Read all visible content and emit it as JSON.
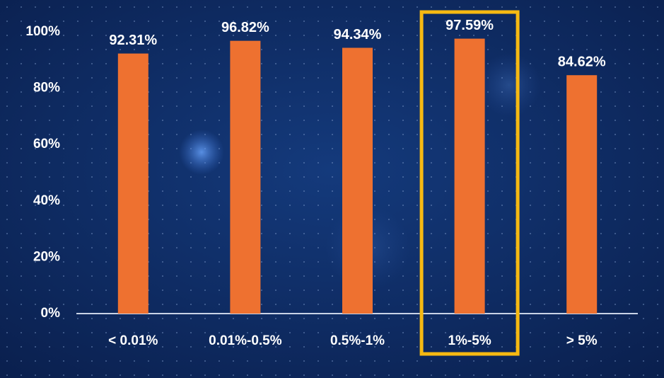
{
  "chart_data": {
    "type": "bar",
    "categories": [
      "< 0.01%",
      "0.01%-0.5%",
      "0.5%-1%",
      "1%-5%",
      "> 5%"
    ],
    "values": [
      92.31,
      96.82,
      94.34,
      97.59,
      84.62
    ],
    "value_labels": [
      "92.31%",
      "96.82%",
      "94.34%",
      "97.59%",
      "84.62%"
    ],
    "color": "#ee7130",
    "ylim": [
      0,
      100
    ],
    "yticks": [
      {
        "value": 0,
        "label": "0%"
      },
      {
        "value": 20,
        "label": "20%"
      },
      {
        "value": 40,
        "label": "40%"
      },
      {
        "value": 60,
        "label": "60%"
      },
      {
        "value": 80,
        "label": "80%"
      },
      {
        "value": 100,
        "label": "100%"
      }
    ],
    "highlight_index": 3,
    "highlight_color": "#f6b912"
  }
}
